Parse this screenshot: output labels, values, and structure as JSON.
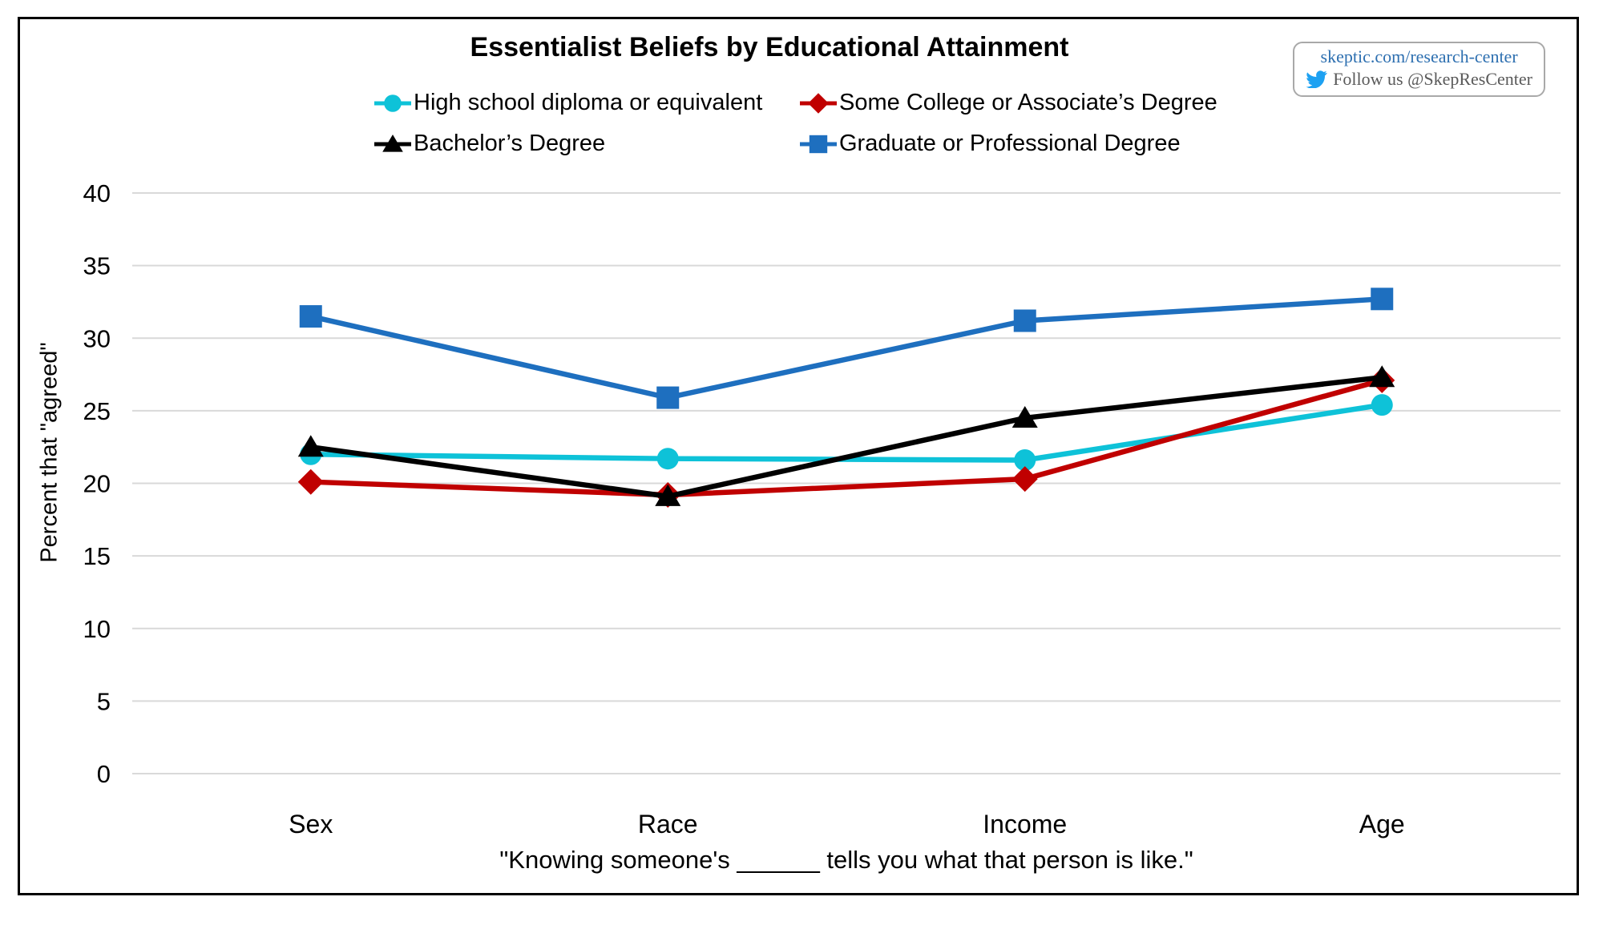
{
  "badge": {
    "url_text": "skeptic.com/research-center",
    "follow_text": "Follow us @SkepResCenter",
    "twitter_icon_color": "#1da1f2",
    "url_color": "#2d6fb0",
    "follow_color": "#5a5a5a"
  },
  "chart_data": {
    "type": "line",
    "title": "Essentialist Beliefs by Educational Attainment",
    "caption": "\"Knowing someone's ______ tells you what that person is like.\"",
    "ylabel": "Percent that \"agreed\"",
    "categories": [
      "Sex",
      "Race",
      "Income",
      "Age"
    ],
    "series": [
      {
        "name": "High school diploma or equivalent",
        "marker": "circle",
        "color": "#0ec2d8",
        "values": [
          22.0,
          21.7,
          21.6,
          25.4
        ]
      },
      {
        "name": "Some College or Associate’s Degree",
        "marker": "diamond",
        "color": "#c00000",
        "values": [
          20.1,
          19.2,
          20.3,
          27.1
        ]
      },
      {
        "name": "Bachelor’s Degree",
        "marker": "triangle",
        "color": "#000000",
        "values": [
          22.5,
          19.1,
          24.5,
          27.3
        ]
      },
      {
        "name": "Graduate or Professional Degree",
        "marker": "square",
        "color": "#1e6fbf",
        "values": [
          31.5,
          25.9,
          31.2,
          32.7
        ]
      }
    ],
    "ylim": [
      0,
      40
    ],
    "yticks": [
      0,
      5,
      10,
      15,
      20,
      25,
      30,
      35,
      40
    ],
    "grid": "horizontal-only",
    "gridline_color": "#d9d9d9",
    "legend_position": "top"
  }
}
